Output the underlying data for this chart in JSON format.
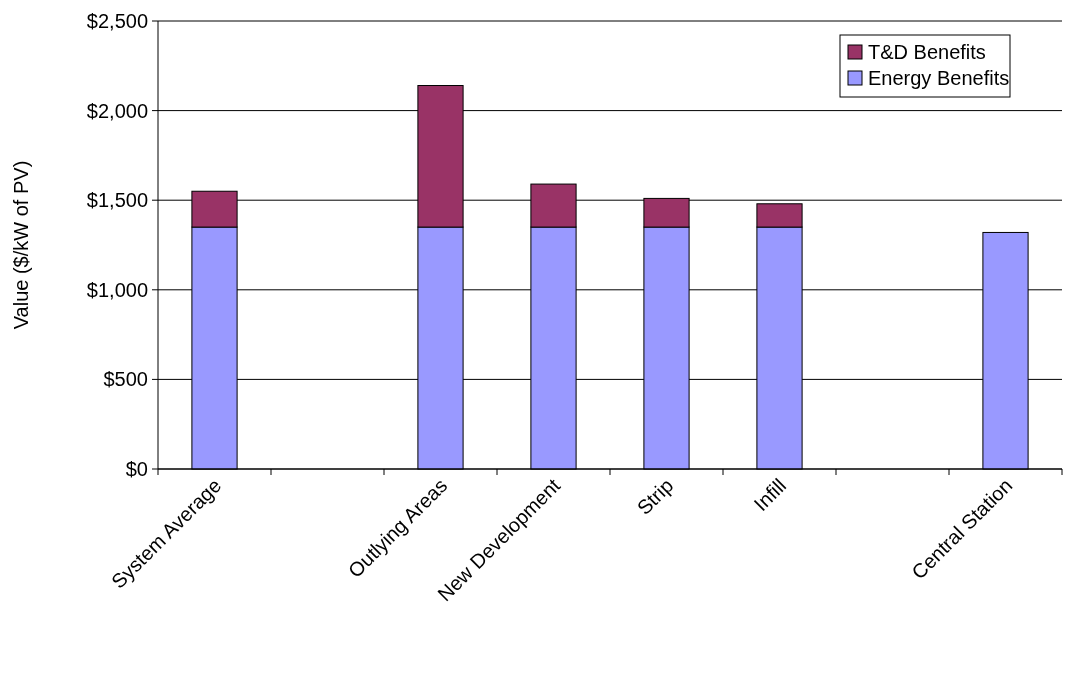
{
  "chart_data": {
    "type": "bar",
    "stacked": true,
    "ylabel": "Value ($/kW of PV)",
    "categories": [
      "System Average",
      null,
      "Outlying Areas",
      "New Development",
      "Strip",
      "Infill",
      null,
      "Central Station"
    ],
    "series": [
      {
        "name": "Energy Benefits",
        "color": "#9999ff",
        "values": [
          1350,
          null,
          1350,
          1350,
          1350,
          1350,
          null,
          1320
        ]
      },
      {
        "name": "T&D Benefits",
        "color": "#993366",
        "values": [
          200,
          null,
          790,
          240,
          160,
          130,
          null,
          null
        ]
      }
    ],
    "ylim": [
      0,
      2500
    ],
    "yticks": [
      {
        "value": 0,
        "label": "$0"
      },
      {
        "value": 500,
        "label": "$500"
      },
      {
        "value": 1000,
        "label": "$1,000"
      },
      {
        "value": 1500,
        "label": "$1,500"
      },
      {
        "value": 2000,
        "label": "$2,000"
      },
      {
        "value": 2500,
        "label": "$2,500"
      }
    ],
    "grid": "y",
    "legend": "top right"
  }
}
